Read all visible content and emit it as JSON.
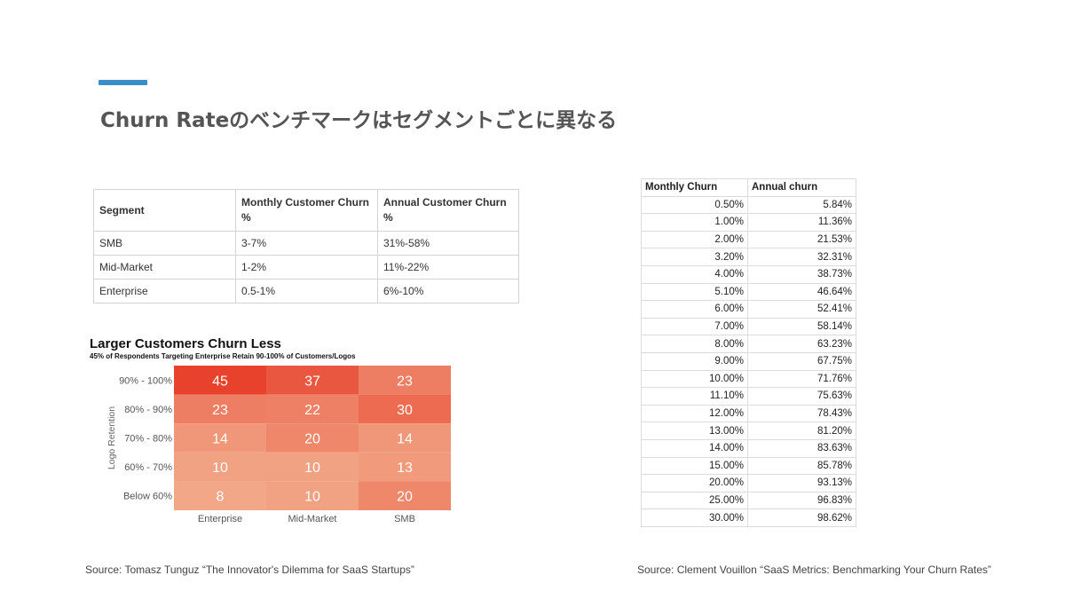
{
  "title": "Churn Rateのベンチマークはセグメントごとに異なる",
  "segment_table": {
    "headers": [
      "Segment",
      "Monthly Customer Churn %",
      "Annual Customer Churn %"
    ],
    "rows": [
      [
        "SMB",
        "3-7%",
        "31%-58%"
      ],
      [
        "Mid-Market",
        "1-2%",
        "11%-22%"
      ],
      [
        "Enterprise",
        "0.5-1%",
        "6%-10%"
      ]
    ]
  },
  "heatmap": {
    "title": "Larger Customers Churn Less",
    "subtitle": "45% of Respondents Targeting Enterprise Retain 90-100% of Customers/Logos"
  },
  "chart_data": {
    "type": "heatmap",
    "title": "Larger Customers Churn Less",
    "subtitle": "45% of Respondents Targeting Enterprise Retain 90-100% of Customers/Logos",
    "ylabel": "Logo Retention",
    "xlabel": "",
    "x_categories": [
      "Enterprise",
      "Mid-Market",
      "SMB"
    ],
    "y_categories": [
      "90% - 100%",
      "80% - 90%",
      "70% - 80%",
      "60% - 70%",
      "Below 60%"
    ],
    "values": [
      [
        45,
        37,
        23
      ],
      [
        23,
        22,
        30
      ],
      [
        14,
        20,
        14
      ],
      [
        10,
        10,
        13
      ],
      [
        8,
        10,
        20
      ]
    ],
    "colors": {
      "low": "#f2a888",
      "high": "#e8412c"
    }
  },
  "churn_table": {
    "headers": [
      "Monthly Churn",
      "Annual churn"
    ],
    "rows": [
      [
        "0.50%",
        "5.84%"
      ],
      [
        "1.00%",
        "11.36%"
      ],
      [
        "2.00%",
        "21.53%"
      ],
      [
        "3.20%",
        "32.31%"
      ],
      [
        "4.00%",
        "38.73%"
      ],
      [
        "5.10%",
        "46.64%"
      ],
      [
        "6.00%",
        "52.41%"
      ],
      [
        "7.00%",
        "58.14%"
      ],
      [
        "8.00%",
        "63.23%"
      ],
      [
        "9.00%",
        "67.75%"
      ],
      [
        "10.00%",
        "71.76%"
      ],
      [
        "11.10%",
        "75.63%"
      ],
      [
        "12.00%",
        "78.43%"
      ],
      [
        "13.00%",
        "81.20%"
      ],
      [
        "14.00%",
        "83.63%"
      ],
      [
        "15.00%",
        "85.78%"
      ],
      [
        "20.00%",
        "93.13%"
      ],
      [
        "25.00%",
        "96.83%"
      ],
      [
        "30.00%",
        "98.62%"
      ]
    ]
  },
  "sources": {
    "left": "Source: Tomasz Tunguz “The Innovator's Dilemma for SaaS Startups”",
    "right": "Source: Clement Vouillon “SaaS Metrics: Benchmarking Your Churn Rates”"
  },
  "accent_color": "#3a8fc6"
}
